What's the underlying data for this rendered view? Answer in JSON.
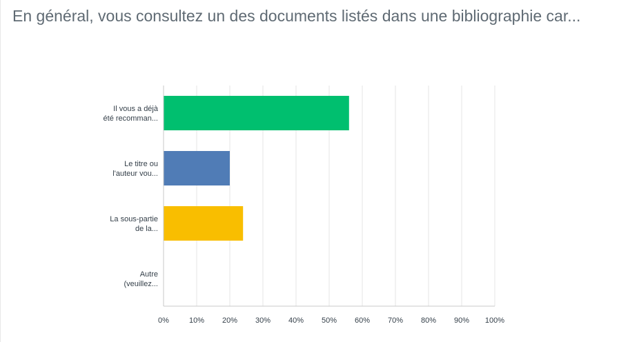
{
  "question": {
    "title": "En général, vous consultez un des documents listés dans une bibliographie car..."
  },
  "chart_data": {
    "type": "bar",
    "orientation": "horizontal",
    "title": "",
    "xlabel": "",
    "ylabel": "",
    "categories": [
      [
        "Il vous a déjà",
        "été recomman..."
      ],
      [
        "Le titre ou",
        "l'auteur vou..."
      ],
      [
        "La sous-partie",
        "de la..."
      ],
      [
        "Autre",
        "(veuillez..."
      ]
    ],
    "values": [
      56,
      20,
      24,
      0
    ],
    "colors": [
      "#00bf6f",
      "#507cb6",
      "#f9be00",
      "#6bc8cd"
    ],
    "xlim": [
      0,
      100
    ],
    "xticks": [
      "0%",
      "10%",
      "20%",
      "30%",
      "40%",
      "50%",
      "60%",
      "70%",
      "80%",
      "90%",
      "100%"
    ],
    "grid": true,
    "legend": "none"
  }
}
